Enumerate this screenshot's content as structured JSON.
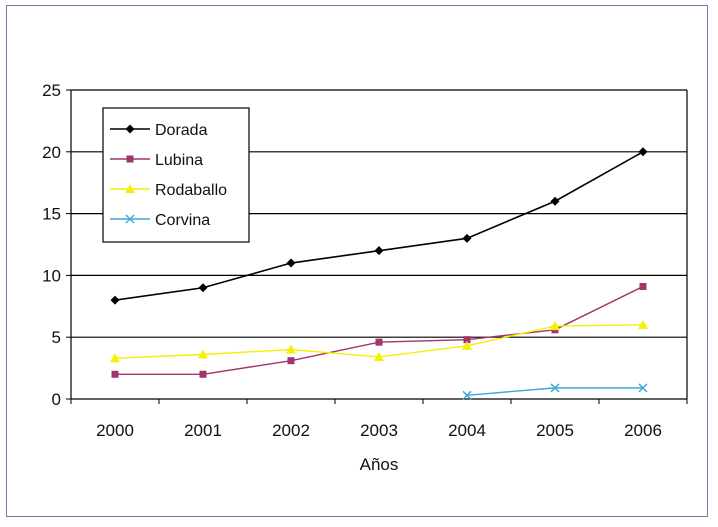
{
  "chart_data": {
    "type": "line",
    "categories": [
      "2000",
      "2001",
      "2002",
      "2003",
      "2004",
      "2005",
      "2006"
    ],
    "xlabel": "Años",
    "ylabel": "",
    "ylim": [
      0,
      25
    ],
    "yticks": [
      0,
      5,
      10,
      15,
      20,
      25
    ],
    "grid": "horizontal",
    "legend_position": "top-left",
    "series": [
      {
        "name": "Dorada",
        "color": "#000000",
        "marker": "diamond",
        "values": [
          8,
          9,
          11,
          12,
          13,
          16,
          20
        ]
      },
      {
        "name": "Lubina",
        "color": "#a3336b",
        "marker": "square",
        "values": [
          2,
          2,
          3.1,
          4.6,
          4.8,
          5.6,
          9.1
        ]
      },
      {
        "name": "Rodaballo",
        "color": "#f2f200",
        "marker": "triangle",
        "values": [
          3.3,
          3.6,
          4.0,
          3.4,
          4.3,
          5.9,
          6.0
        ]
      },
      {
        "name": "Corvina",
        "color": "#3fa9d9",
        "marker": "x",
        "values": [
          null,
          null,
          null,
          null,
          0.3,
          0.9,
          0.9
        ]
      }
    ]
  }
}
